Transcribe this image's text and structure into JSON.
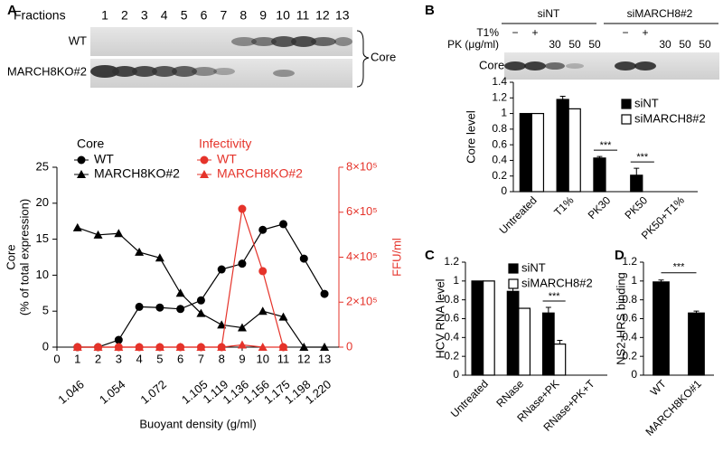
{
  "blots": {
    "A": {
      "header": "Fractions",
      "lanes": [
        "1",
        "2",
        "3",
        "4",
        "5",
        "6",
        "7",
        "8",
        "9",
        "10",
        "11",
        "12",
        "13"
      ],
      "rows": [
        "WT",
        "MARCH8KO#2"
      ],
      "bracket_label": "Core"
    },
    "B": {
      "groups": [
        "siNT",
        "siMARCH8#2"
      ],
      "row_labels": [
        "T1%",
        "PK (μg/ml)"
      ],
      "rows": [
        [
          "−",
          "+",
          null,
          null,
          null
        ],
        [
          null,
          null,
          "30",
          "50",
          "50"
        ]
      ],
      "blot_label": "Core"
    }
  },
  "chart_data": [
    {
      "type": "line",
      "panel": "A",
      "ylabel": [
        "Core",
        "(% of total expression)"
      ],
      "y2label": "FFU/ml",
      "xlabel": "Buoyant density (g/ml)",
      "core_legend_title": "Core",
      "infectivity_legend_title": "Infectivity",
      "x": [
        1,
        2,
        3,
        4,
        5,
        6,
        7,
        8,
        9,
        10,
        11,
        12,
        13
      ],
      "density_labels": [
        "1.046",
        null,
        "1.054",
        null,
        "1.072",
        null,
        "1.105",
        "1.119",
        "1.136",
        "1.156",
        "1.175",
        "1.198",
        "1.220"
      ],
      "xlim": [
        0,
        13.7
      ],
      "xticks": [
        0,
        1,
        2,
        3,
        4,
        5,
        6,
        7,
        8,
        9,
        10,
        11,
        12,
        13
      ],
      "ylim": [
        0,
        25
      ],
      "yticks": [
        0,
        5,
        10,
        15,
        20,
        25
      ],
      "y2lim": [
        0,
        800000
      ],
      "y2ticks": [
        0,
        {
          "value": 200000,
          "label": "2×10⁵"
        },
        {
          "value": 400000,
          "label": "4×10⁵"
        },
        {
          "value": 600000,
          "label": "6×10⁵"
        },
        {
          "value": 800000,
          "label": "8×10⁵"
        }
      ],
      "series": [
        {
          "name": "WT",
          "color": "#000000",
          "marker": "circle",
          "values": [
            0,
            0,
            1,
            5.6,
            5.5,
            5.3,
            6.5,
            10.8,
            11.6,
            16.3,
            17.1,
            12.3,
            7.4
          ]
        },
        {
          "name": "MARCH8KO#2",
          "color": "#000000",
          "marker": "triangle",
          "values": [
            16.6,
            15.6,
            15.8,
            13.2,
            12.4,
            7.5,
            4.7,
            3.1,
            2.7,
            5.0,
            4.2,
            0,
            0
          ]
        },
        {
          "name": "WT",
          "color": "#e5332a",
          "marker": "circle",
          "axis": "y2",
          "values": [
            0,
            0,
            0,
            0,
            0,
            0,
            0,
            0,
            615000,
            338000,
            0,
            null,
            null
          ]
        },
        {
          "name": "MARCH8KO#2",
          "color": "#e5332a",
          "marker": "triangle",
          "axis": "y2",
          "values": [
            0,
            0,
            0,
            0,
            0,
            0,
            0,
            0,
            10000,
            0,
            0,
            null,
            null
          ]
        }
      ]
    },
    {
      "type": "bar",
      "panel": "B",
      "ylabel": "Core level",
      "categories": [
        "Untreated",
        "T1%",
        "PK30",
        "PK50",
        "PK50+T1%"
      ],
      "ylim": [
        0,
        1.4
      ],
      "yticks": [
        0,
        0.2,
        0.4,
        0.6,
        0.8,
        1,
        1.2,
        1.4
      ],
      "significance": [
        null,
        null,
        "***",
        "***",
        null
      ],
      "series": [
        {
          "name": "siNT",
          "color": "#000000",
          "values": [
            1,
            1.18,
            0.43,
            0.21,
            0
          ],
          "errors": [
            null,
            0.04,
            0.02,
            0.09,
            null
          ]
        },
        {
          "name": "siMARCH8#2",
          "color": "#ffffff",
          "values": [
            1,
            1.06,
            0,
            0,
            0
          ],
          "errors": [
            null,
            null,
            null,
            null,
            null
          ]
        }
      ]
    },
    {
      "type": "bar",
      "panel": "C",
      "ylabel": "HCV RNA level",
      "categories": [
        "Untreated",
        "RNase",
        "RNase+PK",
        "RNase+PK+T"
      ],
      "ylim": [
        0,
        1.2
      ],
      "yticks": [
        0,
        0.2,
        0.4,
        0.6,
        0.8,
        1,
        1.2
      ],
      "significance": [
        null,
        null,
        "***",
        null
      ],
      "series": [
        {
          "name": "siNT",
          "color": "#000000",
          "values": [
            1,
            0.89,
            0.66,
            0
          ],
          "errors": [
            null,
            0.05,
            0.06,
            null
          ]
        },
        {
          "name": "siMARCH8#2",
          "color": "#ffffff",
          "values": [
            1,
            0.71,
            0.33,
            0
          ],
          "errors": [
            null,
            null,
            0.04,
            null
          ]
        }
      ]
    },
    {
      "type": "bar",
      "panel": "D",
      "ylabel": "NS2-HRS binding",
      "categories": [
        "WT",
        "MARCH8KO#1"
      ],
      "ylim": [
        0,
        1.2
      ],
      "yticks": [
        0,
        0.2,
        0.4,
        0.6,
        0.8,
        1,
        1.2
      ],
      "bracket_significance": "***",
      "series": [
        {
          "color": "#000000",
          "values": [
            0.99,
            0.66
          ],
          "errors": [
            0.02,
            0.02
          ]
        }
      ]
    }
  ]
}
